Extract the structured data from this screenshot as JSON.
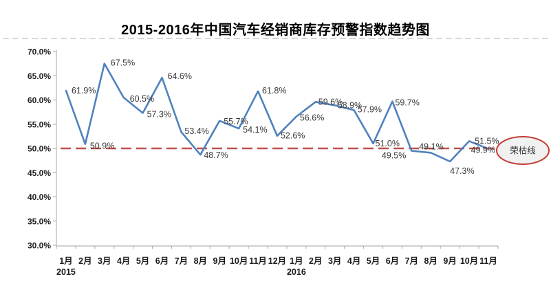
{
  "page": {
    "title": "2015-2016年中国汽车经销商库存预警指数趋势图"
  },
  "chart_data": {
    "type": "line",
    "title": "2015-2016年中国汽车经销商库存预警指数趋势图",
    "categories": [
      "1月",
      "2月",
      "3月",
      "4月",
      "5月",
      "6月",
      "7月",
      "8月",
      "9月",
      "10月",
      "11月",
      "12月",
      "1月",
      "2月",
      "3月",
      "4月",
      "5月",
      "6月",
      "7月",
      "8月",
      "9月",
      "10月",
      "11月"
    ],
    "year_labels": [
      {
        "text": "2015",
        "at_index": 0
      },
      {
        "text": "2016",
        "at_index": 12
      }
    ],
    "series": [
      {
        "values": [
          61.9,
          50.9,
          67.5,
          60.5,
          57.3,
          64.6,
          53.4,
          48.7,
          55.7,
          54.1,
          61.8,
          52.6,
          56.6,
          59.6,
          58.9,
          57.9,
          51.0,
          59.7,
          49.5,
          49.1,
          47.3,
          51.5,
          49.9
        ]
      }
    ],
    "data_label_suffix": "%",
    "ylim": [
      30,
      70
    ],
    "ytick_step": 5,
    "y_tick_labels": [
      "70.0%",
      "65.0%",
      "60.0%",
      "55.0%",
      "50.0%",
      "45.0%",
      "40.0%",
      "35.0%",
      "30.0%"
    ],
    "grid": false,
    "legend": "none",
    "line_color": "#4F81BD",
    "axis_color": "#B3B3B3",
    "divider_color": "#CCCCCC",
    "threshold": {
      "value": 50.0,
      "color": "#C0504D",
      "annotation": "荣枯线",
      "annotation_fill": "#F1F1F1",
      "annotation_border": "#C23B33"
    }
  },
  "layout_hints": {
    "label_offsets": [
      [
        8,
        4,
        "s"
      ],
      [
        7,
        7,
        "s"
      ],
      [
        9,
        3,
        "s"
      ],
      [
        9,
        6,
        "s"
      ],
      [
        6,
        6,
        "s"
      ],
      [
        8,
        2,
        "s"
      ],
      [
        5,
        3,
        "s"
      ],
      [
        5,
        5,
        "s"
      ],
      [
        6,
        5,
        "s"
      ],
      [
        6,
        6,
        "s"
      ],
      [
        6,
        3,
        "s"
      ],
      [
        5,
        4,
        "s"
      ],
      [
        5,
        6,
        "s"
      ],
      [
        4,
        4,
        "s"
      ],
      [
        4,
        4,
        "s"
      ],
      [
        5,
        3,
        "s"
      ],
      [
        3,
        4,
        "s"
      ],
      [
        4,
        6,
        "s"
      ],
      [
        -8,
        11,
        "e"
      ],
      [
        -17,
        -5,
        "s"
      ],
      [
        0,
        18,
        "s"
      ],
      [
        8,
        4,
        "s"
      ],
      [
        10,
        6,
        "e"
      ]
    ]
  }
}
